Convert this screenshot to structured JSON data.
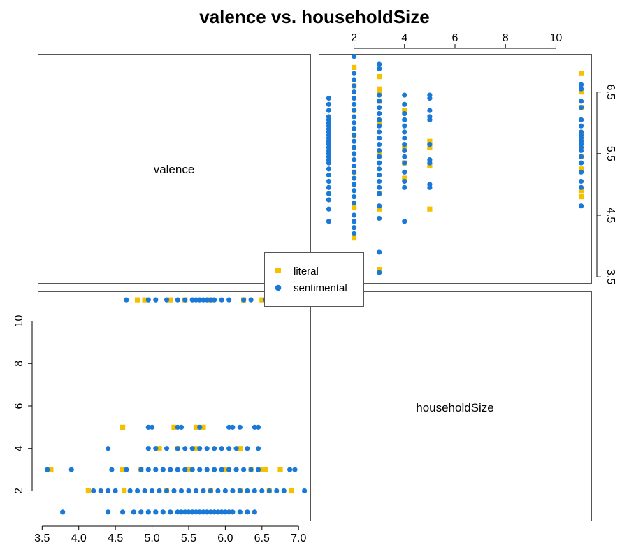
{
  "chart_data": {
    "type": "scatter",
    "kind": "scatterplot-matrix",
    "title": "valence vs. householdSize",
    "variables": [
      "valence",
      "householdSize"
    ],
    "diagonal_labels": [
      "valence",
      "householdSize"
    ],
    "legend": {
      "placement": "center",
      "entries": [
        {
          "name": "literal",
          "color": "#F5C000",
          "marker": "square"
        },
        {
          "name": "sentimental",
          "color": "#1A79D6",
          "marker": "circle"
        }
      ]
    },
    "valence_axis": {
      "ticks": [
        3.5,
        4.0,
        4.5,
        5.0,
        5.5,
        6.0,
        6.5,
        7.0
      ],
      "tick_labels": [
        "3.5",
        "4.0",
        "4.5",
        "5.0",
        "5.5",
        "6.0",
        "6.5",
        "7.0"
      ],
      "lim": [
        3.44,
        7.16
      ]
    },
    "valence_axis_right": {
      "ticks": [
        3.5,
        4.5,
        5.5,
        6.5
      ],
      "tick_labels": [
        "3.5",
        "4.5",
        "5.5",
        "6.5"
      ]
    },
    "household_axis_top": {
      "ticks": [
        2,
        4,
        6,
        8,
        10
      ],
      "tick_labels": [
        "2",
        "4",
        "6",
        "8",
        "10"
      ],
      "lim": [
        0.6,
        11.4
      ]
    },
    "household_axis_left": {
      "ticks": [
        2,
        4,
        6,
        8,
        10
      ],
      "tick_labels": [
        "2",
        "4",
        "6",
        "8",
        "10"
      ],
      "lim": [
        0.6,
        11.4
      ]
    },
    "series": [
      {
        "name": "literal",
        "points": [
          [
            4.13,
            2
          ],
          [
            4.62,
            2
          ],
          [
            5.2,
            2
          ],
          [
            5.8,
            2
          ],
          [
            6.2,
            2
          ],
          [
            6.6,
            2
          ],
          [
            6.9,
            2
          ],
          [
            3.62,
            3
          ],
          [
            4.6,
            3
          ],
          [
            4.85,
            3
          ],
          [
            5.5,
            3
          ],
          [
            6.0,
            3
          ],
          [
            6.35,
            3
          ],
          [
            6.5,
            3
          ],
          [
            6.55,
            3
          ],
          [
            6.75,
            3
          ],
          [
            5.1,
            4
          ],
          [
            5.35,
            4
          ],
          [
            5.6,
            4
          ],
          [
            6.2,
            4
          ],
          [
            4.6,
            5
          ],
          [
            5.3,
            5
          ],
          [
            5.6,
            5
          ],
          [
            5.7,
            5
          ],
          [
            4.8,
            11
          ],
          [
            4.9,
            11
          ],
          [
            5.25,
            11
          ],
          [
            5.45,
            11
          ],
          [
            5.8,
            11
          ],
          [
            6.25,
            11
          ],
          [
            6.5,
            11
          ],
          [
            6.8,
            11
          ]
        ]
      },
      {
        "name": "sentimental",
        "points": [
          [
            3.78,
            1
          ],
          [
            4.4,
            1
          ],
          [
            4.6,
            1
          ],
          [
            4.75,
            1
          ],
          [
            4.85,
            1
          ],
          [
            4.95,
            1
          ],
          [
            5.05,
            1
          ],
          [
            5.15,
            1
          ],
          [
            5.25,
            1
          ],
          [
            5.35,
            1
          ],
          [
            5.4,
            1
          ],
          [
            5.45,
            1
          ],
          [
            5.5,
            1
          ],
          [
            5.55,
            1
          ],
          [
            5.6,
            1
          ],
          [
            5.65,
            1
          ],
          [
            5.7,
            1
          ],
          [
            5.75,
            1
          ],
          [
            5.8,
            1
          ],
          [
            5.85,
            1
          ],
          [
            5.9,
            1
          ],
          [
            5.95,
            1
          ],
          [
            6.0,
            1
          ],
          [
            6.05,
            1
          ],
          [
            6.1,
            1
          ],
          [
            6.2,
            1
          ],
          [
            6.3,
            1
          ],
          [
            6.4,
            1
          ],
          [
            4.2,
            2
          ],
          [
            4.3,
            2
          ],
          [
            4.4,
            2
          ],
          [
            4.5,
            2
          ],
          [
            4.7,
            2
          ],
          [
            4.8,
            2
          ],
          [
            4.9,
            2
          ],
          [
            5.0,
            2
          ],
          [
            5.1,
            2
          ],
          [
            5.2,
            2
          ],
          [
            5.3,
            2
          ],
          [
            5.4,
            2
          ],
          [
            5.5,
            2
          ],
          [
            5.6,
            2
          ],
          [
            5.7,
            2
          ],
          [
            5.8,
            2
          ],
          [
            5.9,
            2
          ],
          [
            6.0,
            2
          ],
          [
            6.1,
            2
          ],
          [
            6.2,
            2
          ],
          [
            6.3,
            2
          ],
          [
            6.4,
            2
          ],
          [
            6.5,
            2
          ],
          [
            6.6,
            2
          ],
          [
            6.7,
            2
          ],
          [
            6.8,
            2
          ],
          [
            7.08,
            2
          ],
          [
            3.57,
            3
          ],
          [
            3.9,
            3
          ],
          [
            4.45,
            3
          ],
          [
            4.65,
            3
          ],
          [
            4.85,
            3
          ],
          [
            4.95,
            3
          ],
          [
            5.05,
            3
          ],
          [
            5.15,
            3
          ],
          [
            5.25,
            3
          ],
          [
            5.35,
            3
          ],
          [
            5.45,
            3
          ],
          [
            5.55,
            3
          ],
          [
            5.65,
            3
          ],
          [
            5.75,
            3
          ],
          [
            5.85,
            3
          ],
          [
            5.95,
            3
          ],
          [
            6.05,
            3
          ],
          [
            6.15,
            3
          ],
          [
            6.25,
            3
          ],
          [
            6.35,
            3
          ],
          [
            6.45,
            3
          ],
          [
            6.88,
            3
          ],
          [
            6.95,
            3
          ],
          [
            4.4,
            4
          ],
          [
            4.95,
            4
          ],
          [
            5.05,
            4
          ],
          [
            5.2,
            4
          ],
          [
            5.35,
            4
          ],
          [
            5.45,
            4
          ],
          [
            5.55,
            4
          ],
          [
            5.65,
            4
          ],
          [
            5.75,
            4
          ],
          [
            5.85,
            4
          ],
          [
            5.95,
            4
          ],
          [
            6.05,
            4
          ],
          [
            6.15,
            4
          ],
          [
            6.3,
            4
          ],
          [
            6.45,
            4
          ],
          [
            4.95,
            5
          ],
          [
            5.0,
            5
          ],
          [
            5.35,
            5
          ],
          [
            5.4,
            5
          ],
          [
            5.65,
            5
          ],
          [
            6.05,
            5
          ],
          [
            6.1,
            5
          ],
          [
            6.2,
            5
          ],
          [
            6.4,
            5
          ],
          [
            6.45,
            5
          ],
          [
            4.65,
            11
          ],
          [
            4.95,
            11
          ],
          [
            5.05,
            11
          ],
          [
            5.2,
            11
          ],
          [
            5.35,
            11
          ],
          [
            5.45,
            11
          ],
          [
            5.55,
            11
          ],
          [
            5.6,
            11
          ],
          [
            5.65,
            11
          ],
          [
            5.7,
            11
          ],
          [
            5.75,
            11
          ],
          [
            5.8,
            11
          ],
          [
            5.85,
            11
          ],
          [
            5.95,
            11
          ],
          [
            6.05,
            11
          ],
          [
            6.25,
            11
          ],
          [
            6.35,
            11
          ],
          [
            6.55,
            11
          ],
          [
            6.62,
            11
          ]
        ]
      }
    ]
  }
}
